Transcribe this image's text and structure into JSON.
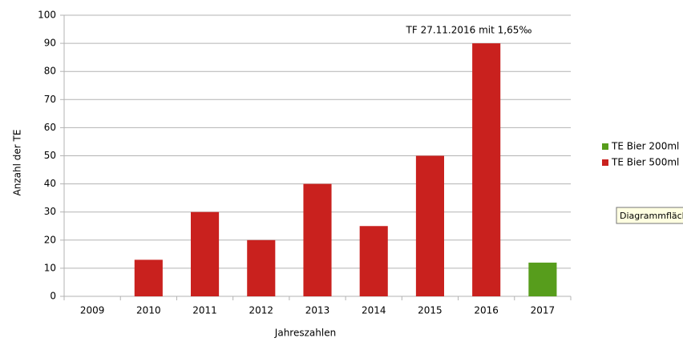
{
  "chart_data": {
    "type": "bar",
    "stacked": true,
    "annotation": "TF 27.11.2016 mit 1,65‰",
    "x_label": "Jahreszahlen",
    "y_label": "Anzahl der TE",
    "categories": [
      "2009",
      "2010",
      "2011",
      "2012",
      "2013",
      "2014",
      "2015",
      "2016",
      "2017"
    ],
    "series": [
      {
        "name": "TE Bier 200ml",
        "color": "#579d1c",
        "values": [
          null,
          null,
          null,
          null,
          null,
          null,
          null,
          null,
          12
        ]
      },
      {
        "name": "TE Bier 500ml",
        "color": "#c9211e",
        "values": [
          null,
          13,
          30,
          20,
          40,
          25,
          50,
          90,
          null
        ]
      }
    ],
    "ylim": [
      0,
      100
    ],
    "yticks": [
      0,
      10,
      20,
      30,
      40,
      50,
      60,
      70,
      80,
      90,
      100
    ],
    "grid": true,
    "legend": "right",
    "tooltip": "Diagrammfläch"
  }
}
